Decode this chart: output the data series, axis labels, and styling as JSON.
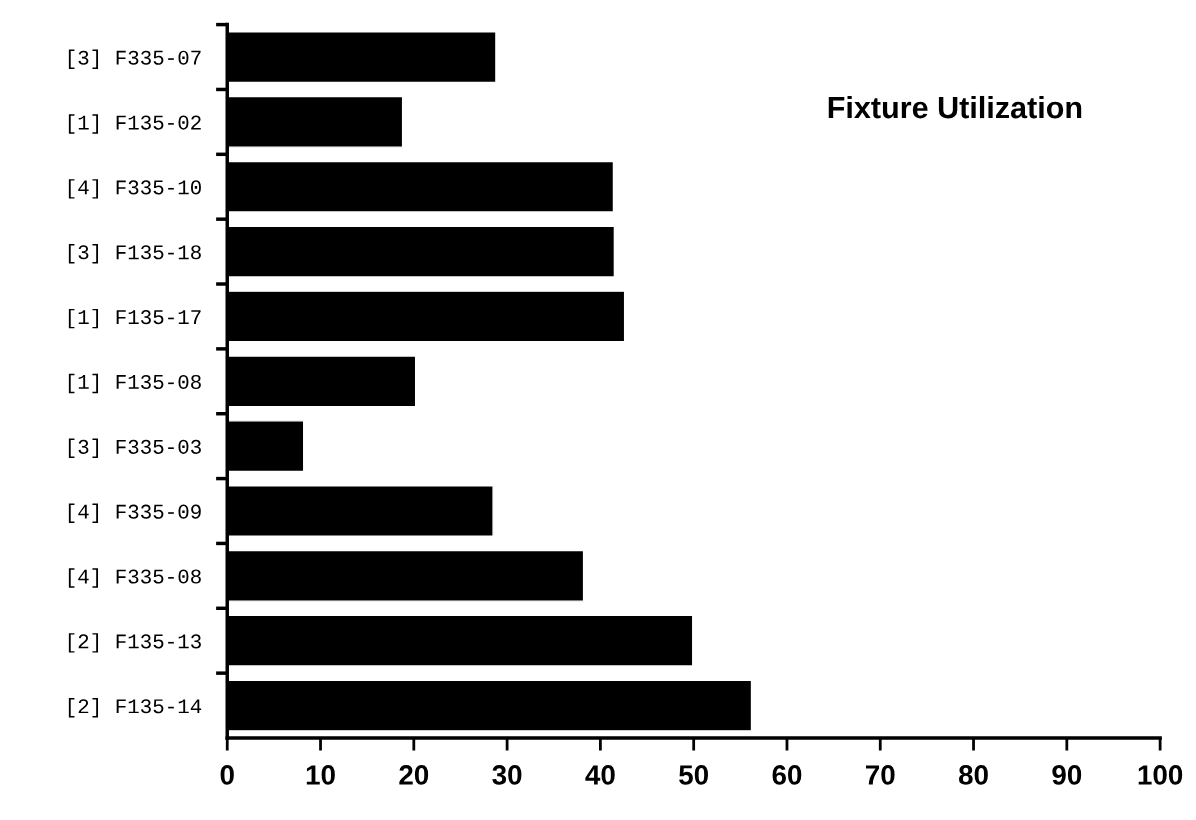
{
  "chart_data": {
    "type": "bar",
    "orientation": "horizontal",
    "title": "Fixture Utilization",
    "categories": [
      "[3] F335-07",
      "[1] F135-02",
      "[4] F335-10",
      "[3] F135-18",
      "[1] F135-17",
      "[1] F135-08",
      "[3] F335-03",
      "[4] F335-09",
      "[4] F335-08",
      "[2] F135-13",
      "[2] F135-14"
    ],
    "values": [
      28.8,
      18.8,
      41.4,
      41.5,
      42.6,
      20.2,
      8.2,
      28.5,
      38.2,
      49.9,
      56.2
    ],
    "color": "#000000",
    "xlim": [
      0,
      100
    ],
    "xticks": [
      0,
      10,
      20,
      30,
      40,
      50,
      60,
      70,
      80,
      90,
      100
    ],
    "grid": false
  }
}
